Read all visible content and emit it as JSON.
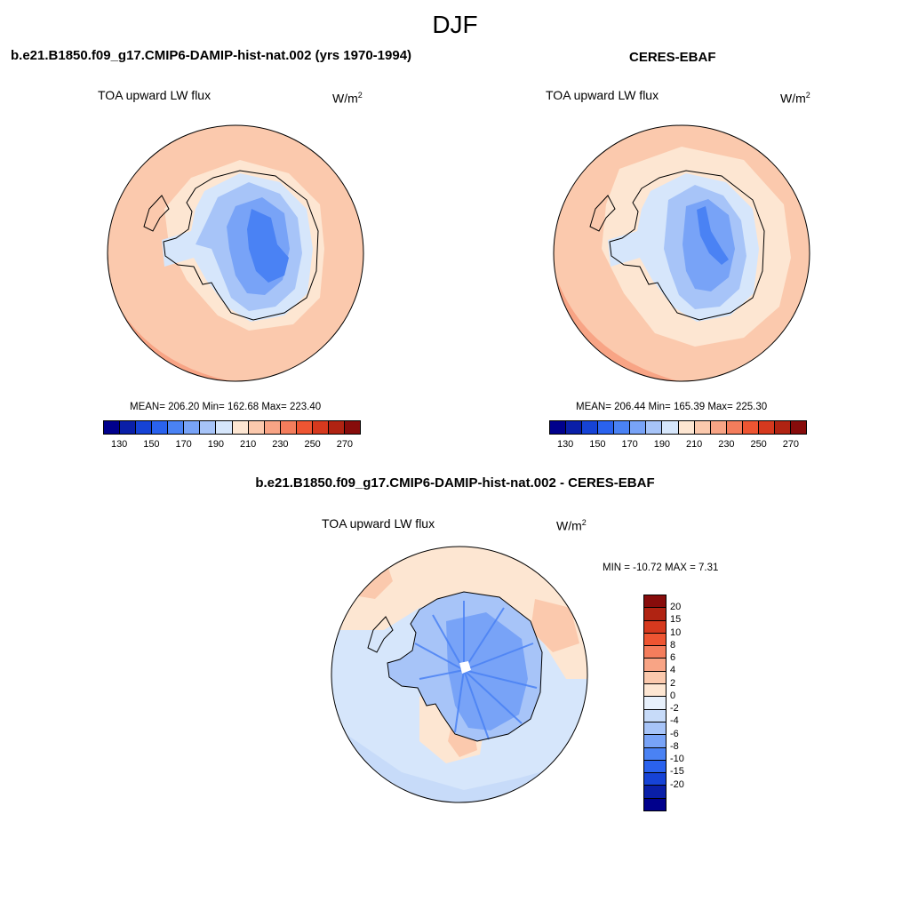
{
  "figure": {
    "title": "DJF"
  },
  "units_label": "W/m",
  "units_exp": "2",
  "colors": {
    "abs_palette": [
      "#00008c",
      "#0a1fa8",
      "#1643d6",
      "#2a62ee",
      "#4a82f4",
      "#78a3f7",
      "#a7c4f8",
      "#d6e6fb",
      "#fde6d2",
      "#fbc9ad",
      "#f8a485",
      "#f47d5c",
      "#ee5532",
      "#d6391e",
      "#b02312",
      "#870c0b"
    ],
    "diff_palette": [
      "#870c0b",
      "#b02312",
      "#d6391e",
      "#ee5532",
      "#f47d5c",
      "#f8a485",
      "#fbc9ad",
      "#fde6d2",
      "#e7f0fb",
      "#c7dbf9",
      "#a7c4f8",
      "#78a3f7",
      "#4a82f4",
      "#2a62ee",
      "#1643d6",
      "#0a1fa8",
      "#00008c"
    ]
  },
  "panels": [
    {
      "title": "b.e21.B1850.f09_g17.CMIP6-DAMIP-hist-nat.002 (yrs 1970-1994)",
      "variable": "TOA upward LW flux",
      "stats": "MEAN= 206.20  Min= 162.68  Max= 223.40",
      "colorbar_ticks": [
        "130",
        "150",
        "170",
        "190",
        "210",
        "230",
        "250",
        "270"
      ]
    },
    {
      "title": "CERES-EBAF",
      "variable": "TOA upward LW flux",
      "stats": "MEAN= 206.44  Min= 165.39  Max= 225.30",
      "colorbar_ticks": [
        "130",
        "150",
        "170",
        "190",
        "210",
        "230",
        "250",
        "270"
      ]
    },
    {
      "title": "b.e21.B1850.f09_g17.CMIP6-DAMIP-hist-nat.002 - CERES-EBAF",
      "variable": "TOA upward LW flux",
      "stats": "MIN = -10.72 MAX =   7.31",
      "colorbar_ticks": [
        "20",
        "15",
        "10",
        "8",
        "6",
        "4",
        "2",
        "0",
        "-2",
        "-4",
        "-6",
        "-8",
        "-10",
        "-15",
        "-20"
      ]
    }
  ]
}
